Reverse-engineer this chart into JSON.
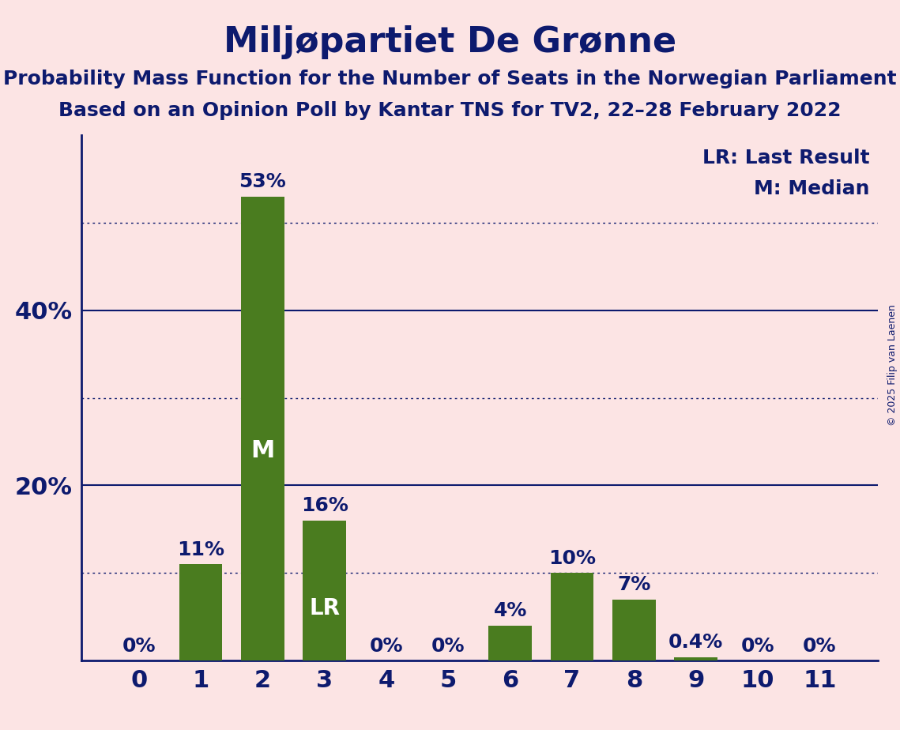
{
  "title": "Miljøpartiet De Grønne",
  "subtitle1": "Probability Mass Function for the Number of Seats in the Norwegian Parliament",
  "subtitle2": "Based on an Opinion Poll by Kantar TNS for TV2, 22–28 February 2022",
  "copyright": "© 2025 Filip van Laenen",
  "categories": [
    0,
    1,
    2,
    3,
    4,
    5,
    6,
    7,
    8,
    9,
    10,
    11
  ],
  "values": [
    0.0,
    11.0,
    53.0,
    16.0,
    0.0,
    0.0,
    4.0,
    10.0,
    7.0,
    0.4,
    0.0,
    0.0
  ],
  "bar_color": "#4a7c1f",
  "bar_labels": [
    "0%",
    "11%",
    "53%",
    "16%",
    "0%",
    "0%",
    "4%",
    "10%",
    "7%",
    "0.4%",
    "0%",
    "0%"
  ],
  "median_bar": 2,
  "lr_bar": 3,
  "background_color": "#fce4e4",
  "text_color": "#0d1a6e",
  "white": "#ffffff",
  "ylim": [
    0,
    60
  ],
  "yticks_solid": [
    20,
    40
  ],
  "ytick_labels_solid": [
    "20%",
    "40%"
  ],
  "dotted_lines": [
    10,
    30,
    50
  ],
  "solid_lines": [
    20,
    40
  ],
  "legend_lr": "LR: Last Result",
  "legend_m": "M: Median",
  "title_fontsize": 32,
  "subtitle_fontsize": 18,
  "axis_fontsize": 22,
  "bar_label_fontsize": 18,
  "legend_fontsize": 18,
  "m_label_fontsize": 22,
  "lr_label_fontsize": 20
}
